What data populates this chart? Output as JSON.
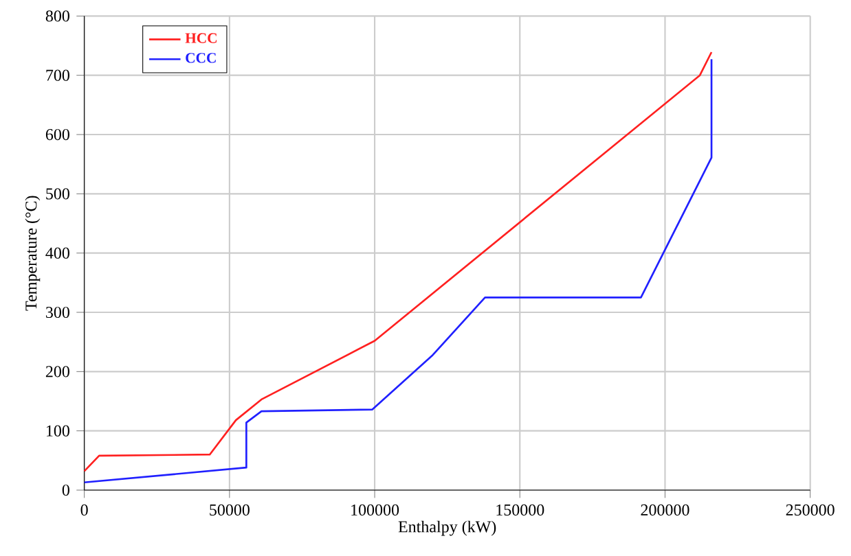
{
  "chart_data": {
    "type": "line",
    "xlabel": "Enthalpy (kW)",
    "ylabel": "Temperature (°C)",
    "xlim": [
      0,
      250000
    ],
    "ylim": [
      0,
      800
    ],
    "xticks": [
      0,
      50000,
      100000,
      150000,
      200000,
      250000
    ],
    "yticks": [
      0,
      100,
      200,
      300,
      400,
      500,
      600,
      700,
      800
    ],
    "grid": true,
    "legend": "top left",
    "marker": "none",
    "line_style": "solid",
    "series": [
      {
        "name": "HCC",
        "color": "#ff2020",
        "x": [
          0,
          5100,
          43200,
          52200,
          61000,
          100000,
          212000,
          216000
        ],
        "values": [
          32,
          58,
          60,
          118,
          153,
          252,
          700,
          739
        ]
      },
      {
        "name": "CCC",
        "color": "#2020ff",
        "x": [
          0,
          55800,
          55800,
          61000,
          99200,
          120000,
          138000,
          191700,
          216000,
          216000
        ],
        "values": [
          13,
          38,
          114,
          133,
          136,
          228,
          325,
          325,
          561,
          727
        ]
      }
    ]
  }
}
